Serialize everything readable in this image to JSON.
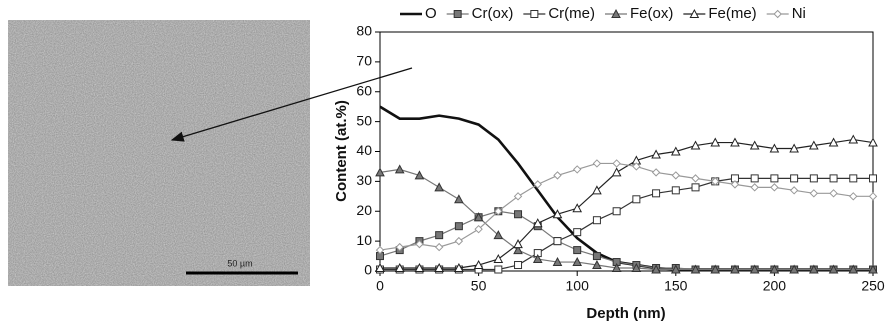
{
  "image": {
    "scale_label": "50 µm"
  },
  "chart_data": {
    "type": "line",
    "xlabel": "Depth (nm)",
    "ylabel": "Content (at.%)",
    "x": [
      0,
      10,
      20,
      30,
      40,
      50,
      60,
      70,
      80,
      90,
      100,
      110,
      120,
      130,
      140,
      150,
      160,
      170,
      180,
      190,
      200,
      210,
      220,
      230,
      240,
      250
    ],
    "xlim": [
      0,
      250
    ],
    "xticks": [
      0,
      50,
      100,
      150,
      200,
      250
    ],
    "ylim": [
      0,
      80
    ],
    "yticks": [
      0,
      10,
      20,
      30,
      40,
      50,
      60,
      70,
      80
    ],
    "legend": "top",
    "series": [
      {
        "name": "O",
        "color": "#111111",
        "marker": "none",
        "values": [
          55,
          51,
          51,
          52,
          51,
          49,
          44,
          36,
          27,
          18,
          11,
          6,
          3,
          2,
          1,
          0.5,
          0.5,
          0.5,
          0.5,
          0.5,
          0.5,
          0.5,
          0.5,
          0.5,
          0.5,
          0.5
        ]
      },
      {
        "name": "Cr(ox)",
        "color": "#777777",
        "marker": "square-filled",
        "values": [
          5,
          7,
          10,
          12,
          15,
          18,
          20,
          19,
          15,
          10,
          7,
          5,
          3,
          2,
          1,
          1,
          0.5,
          0.5,
          0.5,
          0.5,
          0.5,
          0.5,
          0.5,
          0.5,
          0.5,
          0.5
        ]
      },
      {
        "name": "Cr(me)",
        "color": "#333333",
        "marker": "square-open",
        "values": [
          0.5,
          0.5,
          0.5,
          0.5,
          0.5,
          0.5,
          0.5,
          2,
          6,
          10,
          13,
          17,
          20,
          24,
          26,
          27,
          28,
          30,
          31,
          31,
          31,
          31,
          31,
          31,
          31,
          31
        ]
      },
      {
        "name": "Fe(ox)",
        "color": "#777777",
        "marker": "triangle-filled",
        "values": [
          33,
          34,
          32,
          28,
          24,
          18,
          12,
          7,
          4,
          3,
          3,
          2,
          1,
          1,
          0.5,
          0.5,
          0.5,
          0.5,
          0.5,
          0.5,
          0.5,
          0.5,
          0.5,
          0.5,
          0.5,
          0.5
        ]
      },
      {
        "name": "Fe(me)",
        "color": "#222222",
        "marker": "triangle-open",
        "values": [
          1,
          1,
          1,
          1,
          1,
          2,
          4,
          9,
          16,
          19,
          21,
          27,
          33,
          37,
          39,
          40,
          42,
          43,
          43,
          42,
          41,
          41,
          42,
          43,
          44,
          43
        ]
      },
      {
        "name": "Ni",
        "color": "#999999",
        "marker": "diamond-open",
        "values": [
          7,
          8,
          9,
          8,
          10,
          14,
          20,
          25,
          29,
          32,
          34,
          36,
          36,
          35,
          33,
          32,
          31,
          30,
          29,
          28,
          28,
          27,
          26,
          26,
          25,
          25
        ]
      }
    ]
  }
}
